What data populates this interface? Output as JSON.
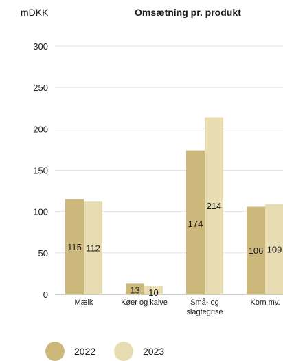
{
  "chart_data": {
    "type": "bar",
    "title": "Omsætning pr. produkt",
    "ylabel": "mDKK",
    "xlabel": "",
    "ylim": [
      0,
      300
    ],
    "yticks": [
      0,
      50,
      100,
      150,
      200,
      250,
      300
    ],
    "grid": true,
    "categories": [
      "Mælk",
      "Køer og kalve",
      "Små- og\nslagtegrise",
      "Korn mv."
    ],
    "series": [
      {
        "name": "2022",
        "color": "#cdb87c",
        "values": [
          115,
          13,
          174,
          106
        ]
      },
      {
        "name": "2023",
        "color": "#e8dcb2",
        "values": [
          112,
          10,
          214,
          109
        ]
      }
    ],
    "legend_position": "bottom-left"
  }
}
